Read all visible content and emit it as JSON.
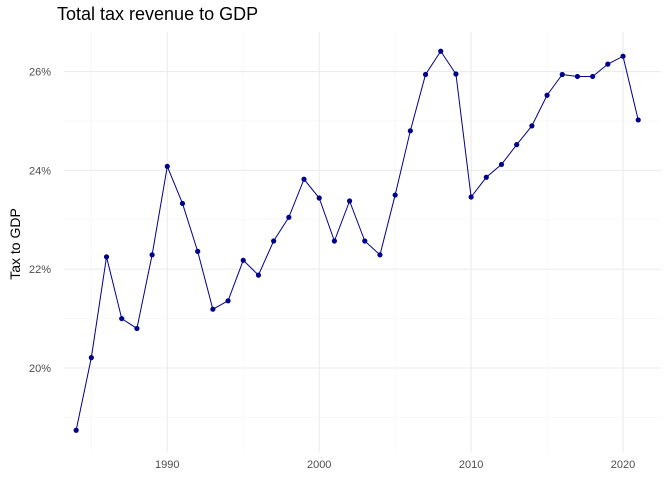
{
  "chart_data": {
    "type": "line",
    "title": "Total tax revenue to GDP",
    "xlabel": "",
    "ylabel": "Tax to GDP",
    "xlim": [
      1983.2,
      2022.5
    ],
    "ylim": [
      18.3,
      26.8
    ],
    "x_ticks": [
      1990,
      2000,
      2010,
      2020
    ],
    "x_tick_labels": [
      "1990",
      "2000",
      "2010",
      "2020"
    ],
    "y_ticks": [
      20,
      22,
      24,
      26
    ],
    "y_tick_labels": [
      "20%",
      "22%",
      "24%",
      "26%"
    ],
    "grid": true,
    "legend": "none",
    "colors": {
      "line": "#00008B",
      "point": "#00008B",
      "grid_major": "#ebebeb",
      "grid_minor": "#f5f5f5"
    },
    "series": [
      {
        "x": [
          1984,
          1985,
          1986,
          1987,
          1988,
          1989,
          1990,
          1991,
          1992,
          1993,
          1994,
          1995,
          1996,
          1997,
          1998,
          1999,
          2000,
          2001,
          2002,
          2003,
          2004,
          2005,
          2006,
          2007,
          2008,
          2009,
          2010,
          2011,
          2012,
          2013,
          2014,
          2015,
          2016,
          2017,
          2018,
          2019,
          2020,
          2021
        ],
        "y": [
          18.74,
          20.21,
          22.25,
          21.0,
          20.8,
          22.29,
          24.08,
          23.33,
          22.36,
          21.19,
          21.36,
          22.18,
          21.88,
          22.57,
          23.05,
          23.82,
          23.44,
          22.57,
          23.38,
          22.57,
          22.29,
          23.5,
          24.8,
          25.94,
          26.41,
          25.95,
          23.46,
          23.86,
          24.12,
          24.52,
          24.9,
          25.52,
          25.94,
          25.9,
          25.9,
          26.15,
          26.31,
          25.02
        ]
      }
    ]
  }
}
